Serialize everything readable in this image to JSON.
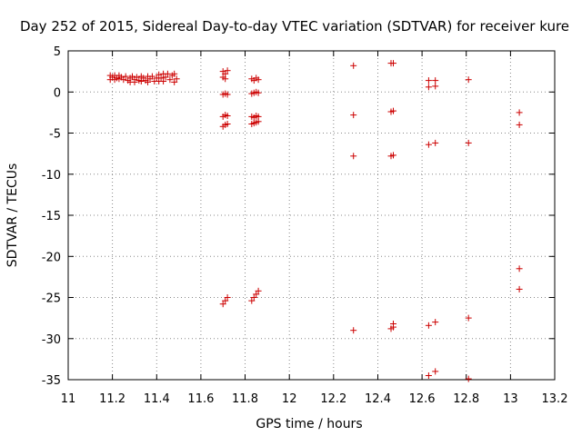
{
  "chart_data": {
    "type": "scatter",
    "title": "Day 252 of 2015, Sidereal Day-to-day VTEC variation (SDTVAR) for receiver kure",
    "xlabel": "GPS time / hours",
    "ylabel": "SDTVAR / TECUs",
    "xlim": [
      11,
      13.2
    ],
    "ylim": [
      -35,
      5
    ],
    "xticks": [
      11,
      11.2,
      11.4,
      11.6,
      11.8,
      12,
      12.2,
      12.4,
      12.6,
      12.8,
      13,
      13.2
    ],
    "xtick_labels": [
      "11",
      "11.2",
      "11.4",
      "11.6",
      "11.8",
      "12",
      "12.2",
      "12.4",
      "12.6",
      "12.8",
      "13",
      "13.2"
    ],
    "yticks": [
      5,
      0,
      -5,
      -10,
      -15,
      -20,
      -25,
      -30,
      -35
    ],
    "ytick_labels": [
      "5",
      "0",
      "-5",
      "-10",
      "-15",
      "-20",
      "-25",
      "-30",
      "-35"
    ],
    "grid": true,
    "marker": "+",
    "marker_color": "#cc0000",
    "series": [
      {
        "name": "SDTVAR",
        "points": [
          [
            11.19,
            2.0
          ],
          [
            11.19,
            1.5
          ],
          [
            11.2,
            1.8
          ],
          [
            11.21,
            2.0
          ],
          [
            11.21,
            1.5
          ],
          [
            11.22,
            1.7
          ],
          [
            11.23,
            2.0
          ],
          [
            11.23,
            1.6
          ],
          [
            11.24,
            1.8
          ],
          [
            11.25,
            1.5
          ],
          [
            11.26,
            1.9
          ],
          [
            11.27,
            1.4
          ],
          [
            11.28,
            1.7
          ],
          [
            11.28,
            1.2
          ],
          [
            11.29,
            1.9
          ],
          [
            11.3,
            1.5
          ],
          [
            11.3,
            1.2
          ],
          [
            11.31,
            1.8
          ],
          [
            11.32,
            1.4
          ],
          [
            11.33,
            1.9
          ],
          [
            11.33,
            1.3
          ],
          [
            11.34,
            1.7
          ],
          [
            11.35,
            1.4
          ],
          [
            11.36,
            1.9
          ],
          [
            11.36,
            1.2
          ],
          [
            11.37,
            1.6
          ],
          [
            11.38,
            1.9
          ],
          [
            11.39,
            1.3
          ],
          [
            11.4,
            1.7
          ],
          [
            11.41,
            2.1
          ],
          [
            11.41,
            1.3
          ],
          [
            11.42,
            1.7
          ],
          [
            11.43,
            2.2
          ],
          [
            11.43,
            1.3
          ],
          [
            11.44,
            1.8
          ],
          [
            11.45,
            2.2
          ],
          [
            11.46,
            1.5
          ],
          [
            11.47,
            2.0
          ],
          [
            11.48,
            1.2
          ],
          [
            11.48,
            2.2
          ],
          [
            11.49,
            1.6
          ],
          [
            11.7,
            2.5
          ],
          [
            11.7,
            1.8
          ],
          [
            11.71,
            2.2
          ],
          [
            11.71,
            1.6
          ],
          [
            11.72,
            2.6
          ],
          [
            11.7,
            -0.3
          ],
          [
            11.71,
            -0.2
          ],
          [
            11.72,
            -0.3
          ],
          [
            11.7,
            -3.0
          ],
          [
            11.71,
            -2.8
          ],
          [
            11.72,
            -2.9
          ],
          [
            11.7,
            -4.2
          ],
          [
            11.71,
            -4.0
          ],
          [
            11.72,
            -3.9
          ],
          [
            11.7,
            -25.8
          ],
          [
            11.71,
            -25.4
          ],
          [
            11.72,
            -25.0
          ],
          [
            11.83,
            1.6
          ],
          [
            11.84,
            1.4
          ],
          [
            11.85,
            1.7
          ],
          [
            11.86,
            1.5
          ],
          [
            11.83,
            -0.2
          ],
          [
            11.84,
            -0.1
          ],
          [
            11.85,
            0.0
          ],
          [
            11.86,
            -0.1
          ],
          [
            11.83,
            -3.0
          ],
          [
            11.84,
            -3.1
          ],
          [
            11.85,
            -2.9
          ],
          [
            11.86,
            -3.0
          ],
          [
            11.83,
            -3.9
          ],
          [
            11.84,
            -3.8
          ],
          [
            11.85,
            -3.7
          ],
          [
            11.86,
            -3.6
          ],
          [
            11.83,
            -25.4
          ],
          [
            11.84,
            -25.0
          ],
          [
            11.85,
            -24.6
          ],
          [
            11.86,
            -24.2
          ],
          [
            12.29,
            3.2
          ],
          [
            12.29,
            -2.8
          ],
          [
            12.29,
            -7.8
          ],
          [
            12.29,
            -29.0
          ],
          [
            12.46,
            3.5
          ],
          [
            12.47,
            3.5
          ],
          [
            12.46,
            -2.4
          ],
          [
            12.47,
            -2.3
          ],
          [
            12.46,
            -7.8
          ],
          [
            12.47,
            -7.7
          ],
          [
            12.46,
            -28.8
          ],
          [
            12.47,
            -28.6
          ],
          [
            12.47,
            -28.2
          ],
          [
            12.63,
            1.4
          ],
          [
            12.63,
            0.6
          ],
          [
            12.66,
            1.4
          ],
          [
            12.66,
            0.7
          ],
          [
            12.63,
            -6.4
          ],
          [
            12.66,
            -6.2
          ],
          [
            12.63,
            -28.4
          ],
          [
            12.66,
            -28.0
          ],
          [
            12.63,
            -34.5
          ],
          [
            12.66,
            -34.0
          ],
          [
            12.81,
            1.5
          ],
          [
            12.81,
            -6.2
          ],
          [
            12.81,
            -27.5
          ],
          [
            12.81,
            -34.9
          ],
          [
            13.04,
            -2.5
          ],
          [
            13.04,
            -4.0
          ],
          [
            13.04,
            -21.5
          ],
          [
            13.04,
            -24.0
          ]
        ]
      }
    ]
  }
}
